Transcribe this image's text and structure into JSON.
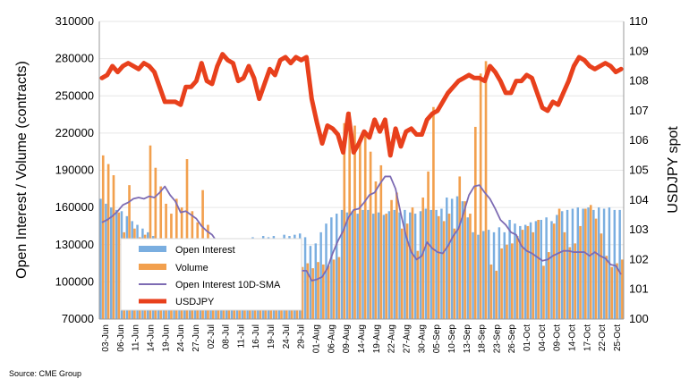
{
  "source": "Source: CME Group",
  "chart_data": {
    "type": "bar",
    "ylabel": "Open Interest / Volume (contracts)",
    "ylabel_right": "USDJPY spot",
    "ylim": [
      70000,
      310000
    ],
    "yticks": [
      70000,
      100000,
      130000,
      160000,
      190000,
      220000,
      250000,
      280000,
      310000
    ],
    "ylim_right": [
      100,
      110
    ],
    "yticks_right": [
      100,
      101,
      102,
      103,
      104,
      105,
      106,
      107,
      108,
      109,
      110
    ],
    "x_tick_labels": [
      "03-Jun",
      "06-Jun",
      "11-Jun",
      "14-Jun",
      "19-Jun",
      "24-Jun",
      "27-Jun",
      "02-Jul",
      "08-Jul",
      "11-Jul",
      "16-Jul",
      "19-Jul",
      "24-Jul",
      "29-Jul",
      "01-Aug",
      "06-Aug",
      "09-Aug",
      "14-Aug",
      "19-Aug",
      "22-Aug",
      "27-Aug",
      "30-Aug",
      "05-Sep",
      "10-Sep",
      "13-Sep",
      "18-Sep",
      "23-Sep",
      "26-Sep",
      "01-Oct",
      "04-Oct",
      "09-Oct",
      "14-Oct",
      "17-Oct",
      "22-Oct",
      "25-Oct"
    ],
    "legend": [
      "Open Interest",
      "Volume",
      "Open Interest 10D-SMA",
      "USDJPY"
    ],
    "legend_position": "lower-left",
    "colors": {
      "open_interest": "#7aaee0",
      "volume": "#f2a04e",
      "sma": "#7d6bb3",
      "usdjpy": "#e8401c"
    },
    "series": [
      {
        "name": "Open Interest",
        "axis": "left",
        "values": [
          167000,
          163000,
          160000,
          158000,
          157000,
          153000,
          149000,
          146000,
          143000,
          140000,
          137000,
          135000,
          134000,
          133000,
          132000,
          131000,
          130000,
          130000,
          129000,
          128000,
          128000,
          127000,
          127000,
          126000,
          133000,
          134000,
          133000,
          135000,
          134000,
          136000,
          135000,
          137000,
          136000,
          137000,
          135000,
          138000,
          137000,
          138000,
          139000,
          136000,
          129000,
          131000,
          140000,
          147000,
          152000,
          155000,
          158000,
          156000,
          157000,
          155000,
          158000,
          158000,
          155000,
          156000,
          154000,
          157000,
          158000,
          156000,
          158000,
          156000,
          155000,
          157000,
          159000,
          158000,
          158000,
          159000,
          168000,
          167000,
          169000,
          165000,
          152000,
          140000,
          138000,
          141000,
          142000,
          140000,
          144000,
          140000,
          150000,
          147000,
          145000,
          146000,
          148000,
          149000,
          150000,
          152000,
          149000,
          154000,
          157000,
          158000,
          159000,
          160000,
          159000,
          160000,
          158000,
          160000,
          159000,
          160000,
          158000,
          158000
        ]
      },
      {
        "name": "Volume",
        "axis": "left",
        "values": [
          202000,
          195000,
          186000,
          156000,
          140000,
          178000,
          143000,
          136000,
          138000,
          210000,
          192000,
          177000,
          163000,
          155000,
          167000,
          160000,
          199000,
          157000,
          148000,
          174000,
          146000,
          126000,
          134000,
          125000,
          131000,
          122000,
          120000,
          124000,
          118000,
          116000,
          113000,
          115000,
          118000,
          112000,
          116000,
          114000,
          110000,
          113000,
          112000,
          115000,
          111000,
          116000,
          114000,
          113000,
          118000,
          120000,
          228000,
          237000,
          226000,
          215000,
          222000,
          205000,
          181000,
          194000,
          155000,
          166000,
          172000,
          143000,
          147000,
          160000,
          125000,
          168000,
          189000,
          241000,
          153000,
          149000,
          155000,
          143000,
          185000,
          165000,
          155000,
          225000,
          268000,
          278000,
          114000,
          109000,
          127000,
          130000,
          131000,
          137000,
          142000,
          145000,
          140000,
          150000,
          113000,
          124000,
          147000,
          159000,
          140000,
          128000,
          131000,
          145000,
          159000,
          162000,
          151000,
          139000,
          121000,
          112000,
          115000,
          118000
        ]
      },
      {
        "name": "Open Interest 10D-SMA",
        "axis": "left",
        "values": [
          148000,
          150000,
          153000,
          157000,
          162000,
          164000,
          167000,
          168000,
          167000,
          169000,
          168000,
          172000,
          177000,
          170000,
          165000,
          156000,
          157000,
          154000,
          151000,
          145000,
          141000,
          138000,
          132000,
          129000,
          125000,
          122000,
          120000,
          118000,
          117000,
          115000,
          114000,
          113000,
          113000,
          113000,
          113000,
          112000,
          111000,
          110000,
          109000,
          109000,
          101000,
          102000,
          104000,
          111000,
          123000,
          133000,
          141000,
          152000,
          158000,
          159000,
          164000,
          170000,
          172000,
          179000,
          185000,
          185000,
          175000,
          155000,
          137000,
          124000,
          118000,
          121000,
          132000,
          127000,
          124000,
          123000,
          129000,
          137000,
          143000,
          156000,
          170000,
          177000,
          178000,
          172000,
          167000,
          159000,
          150000,
          146000,
          140000,
          138000,
          129000,
          125000,
          123000,
          120000,
          117000,
          118000,
          121000,
          123000,
          125000,
          125000,
          124000,
          124000,
          124000,
          121000,
          124000,
          121000,
          119000,
          114000,
          113000,
          106000
        ]
      },
      {
        "name": "USDJPY",
        "axis": "right",
        "values": [
          108.1,
          108.2,
          108.5,
          108.3,
          108.5,
          108.6,
          108.5,
          108.4,
          108.6,
          108.5,
          108.3,
          107.8,
          107.3,
          107.3,
          107.3,
          107.2,
          107.8,
          107.8,
          108.0,
          108.6,
          108.0,
          107.9,
          108.5,
          108.9,
          108.7,
          108.6,
          108.0,
          108.1,
          108.5,
          108.1,
          107.4,
          107.9,
          108.4,
          108.2,
          108.7,
          108.8,
          108.6,
          108.8,
          108.7,
          108.8,
          107.4,
          106.6,
          105.9,
          106.5,
          106.4,
          106.2,
          105.6,
          106.9,
          105.6,
          105.9,
          106.3,
          106.1,
          106.7,
          106.3,
          106.7,
          105.5,
          106.4,
          105.8,
          106.3,
          106.4,
          106.2,
          106.2,
          106.7,
          106.9,
          107.0,
          107.3,
          107.6,
          107.8,
          108.0,
          108.1,
          108.2,
          108.1,
          108.1,
          108.0,
          108.5,
          108.3,
          108.0,
          107.6,
          107.6,
          108.0,
          108.0,
          108.2,
          108.1,
          107.6,
          107.1,
          107.0,
          107.3,
          107.2,
          107.6,
          108.0,
          108.5,
          108.8,
          108.7,
          108.5,
          108.4,
          108.5,
          108.6,
          108.5,
          108.3,
          108.4
        ]
      }
    ]
  }
}
